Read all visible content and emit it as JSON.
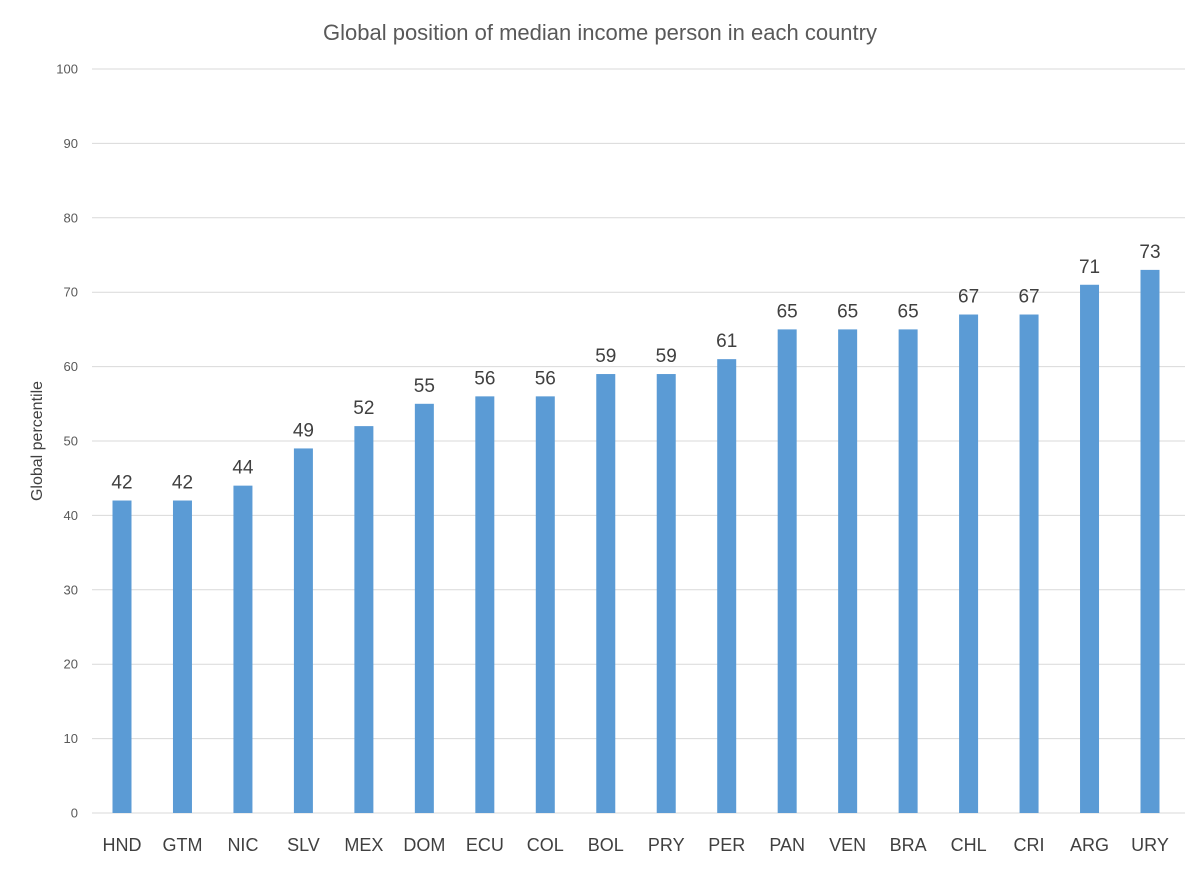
{
  "chart_data": {
    "type": "bar",
    "title": "Global position of median income person in each country",
    "xlabel": "",
    "ylabel": "Global percentile",
    "ylim": [
      0,
      100
    ],
    "yticks": [
      0,
      10,
      20,
      30,
      40,
      50,
      60,
      70,
      80,
      90,
      100
    ],
    "grid": true,
    "legend": "none",
    "bar_color": "#5b9bd5",
    "categories": [
      "HND",
      "GTM",
      "NIC",
      "SLV",
      "MEX",
      "DOM",
      "ECU",
      "COL",
      "BOL",
      "PRY",
      "PER",
      "PAN",
      "VEN",
      "BRA",
      "CHL",
      "CRI",
      "ARG",
      "URY"
    ],
    "values": [
      42,
      42,
      44,
      49,
      52,
      55,
      56,
      56,
      59,
      59,
      61,
      65,
      65,
      65,
      67,
      67,
      71,
      73
    ]
  }
}
